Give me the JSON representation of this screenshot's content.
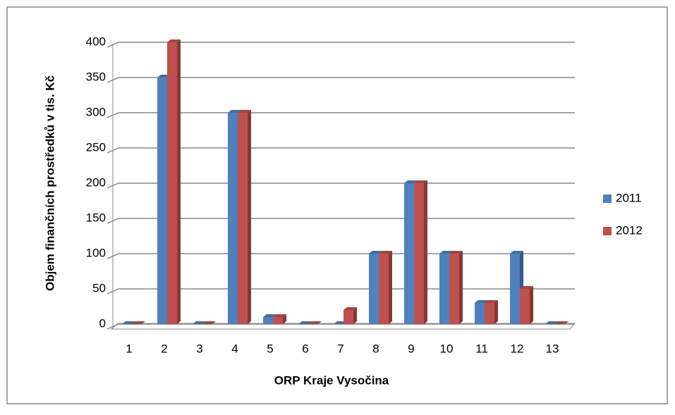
{
  "chart_data": {
    "type": "bar3d",
    "x_label": "ORP Kraje Vysočina",
    "y_label": "Objem finančních prostředků v tis. Kč",
    "categories": [
      "1",
      "2",
      "3",
      "4",
      "5",
      "6",
      "7",
      "8",
      "9",
      "10",
      "11",
      "12",
      "13"
    ],
    "series": [
      {
        "name": "2011",
        "color": "#4f81bd",
        "values": [
          0,
          350,
          0,
          300,
          10,
          0,
          0,
          100,
          200,
          100,
          30,
          100,
          0
        ]
      },
      {
        "name": "2012",
        "color": "#c0504d",
        "values": [
          0,
          400,
          0,
          300,
          10,
          0,
          20,
          100,
          200,
          100,
          30,
          50,
          0
        ]
      }
    ],
    "ylim": [
      0,
      400
    ],
    "yticks": [
      0,
      50,
      100,
      150,
      200,
      250,
      300,
      350,
      400
    ],
    "grid": true,
    "legend": "right"
  }
}
